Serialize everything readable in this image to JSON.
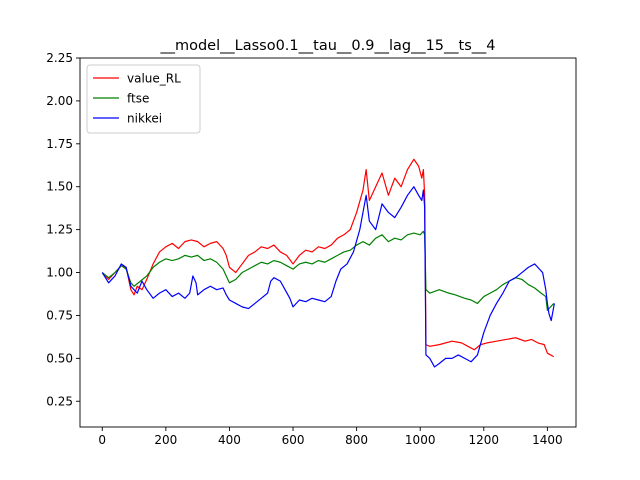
{
  "chart_data": {
    "type": "line",
    "title": "__model__Lasso0.1__tau__0.9__lag__15__ts__4",
    "xlabel": "",
    "ylabel": "",
    "xlim": [
      -70,
      1490
    ],
    "ylim": [
      0.1,
      2.25
    ],
    "xticks": [
      0,
      200,
      400,
      600,
      800,
      1000,
      1200,
      1400
    ],
    "yticks": [
      0.25,
      0.5,
      0.75,
      1.0,
      1.25,
      1.5,
      1.75,
      2.0,
      2.25
    ],
    "ytick_labels": [
      "0.25",
      "0.50",
      "0.75",
      "1.00",
      "1.25",
      "1.50",
      "1.75",
      "2.00",
      "2.25"
    ],
    "grid": false,
    "legend_position": "upper-left",
    "series": [
      {
        "name": "value_RL",
        "color": "#ff0000",
        "points": [
          [
            0,
            1.0
          ],
          [
            20,
            0.96
          ],
          [
            40,
            1.0
          ],
          [
            60,
            1.04
          ],
          [
            75,
            1.03
          ],
          [
            90,
            0.9
          ],
          [
            100,
            0.87
          ],
          [
            110,
            0.92
          ],
          [
            125,
            0.9
          ],
          [
            140,
            0.96
          ],
          [
            160,
            1.05
          ],
          [
            180,
            1.12
          ],
          [
            200,
            1.15
          ],
          [
            220,
            1.17
          ],
          [
            240,
            1.14
          ],
          [
            260,
            1.18
          ],
          [
            280,
            1.19
          ],
          [
            300,
            1.18
          ],
          [
            320,
            1.15
          ],
          [
            340,
            1.17
          ],
          [
            360,
            1.18
          ],
          [
            380,
            1.14
          ],
          [
            390,
            1.1
          ],
          [
            400,
            1.03
          ],
          [
            420,
            1.0
          ],
          [
            440,
            1.05
          ],
          [
            460,
            1.1
          ],
          [
            480,
            1.12
          ],
          [
            500,
            1.15
          ],
          [
            520,
            1.14
          ],
          [
            540,
            1.16
          ],
          [
            560,
            1.12
          ],
          [
            580,
            1.1
          ],
          [
            600,
            1.05
          ],
          [
            620,
            1.1
          ],
          [
            640,
            1.13
          ],
          [
            660,
            1.12
          ],
          [
            680,
            1.15
          ],
          [
            700,
            1.14
          ],
          [
            720,
            1.16
          ],
          [
            740,
            1.2
          ],
          [
            760,
            1.22
          ],
          [
            780,
            1.25
          ],
          [
            800,
            1.35
          ],
          [
            820,
            1.48
          ],
          [
            830,
            1.6
          ],
          [
            840,
            1.42
          ],
          [
            860,
            1.5
          ],
          [
            880,
            1.58
          ],
          [
            900,
            1.45
          ],
          [
            920,
            1.55
          ],
          [
            940,
            1.5
          ],
          [
            960,
            1.6
          ],
          [
            980,
            1.66
          ],
          [
            995,
            1.62
          ],
          [
            1005,
            1.55
          ],
          [
            1010,
            1.6
          ],
          [
            1014,
            1.45
          ],
          [
            1018,
            0.58
          ],
          [
            1030,
            0.57
          ],
          [
            1060,
            0.58
          ],
          [
            1100,
            0.6
          ],
          [
            1130,
            0.59
          ],
          [
            1150,
            0.57
          ],
          [
            1170,
            0.55
          ],
          [
            1190,
            0.58
          ],
          [
            1210,
            0.59
          ],
          [
            1240,
            0.6
          ],
          [
            1270,
            0.61
          ],
          [
            1300,
            0.62
          ],
          [
            1330,
            0.6
          ],
          [
            1350,
            0.61
          ],
          [
            1370,
            0.59
          ],
          [
            1390,
            0.58
          ],
          [
            1400,
            0.53
          ],
          [
            1410,
            0.52
          ],
          [
            1420,
            0.51
          ]
        ]
      },
      {
        "name": "ftse",
        "color": "#008000",
        "points": [
          [
            0,
            1.0
          ],
          [
            20,
            0.97
          ],
          [
            40,
            1.0
          ],
          [
            60,
            1.04
          ],
          [
            75,
            1.02
          ],
          [
            90,
            0.94
          ],
          [
            100,
            0.92
          ],
          [
            120,
            0.95
          ],
          [
            140,
            0.98
          ],
          [
            160,
            1.03
          ],
          [
            180,
            1.06
          ],
          [
            200,
            1.08
          ],
          [
            220,
            1.07
          ],
          [
            240,
            1.08
          ],
          [
            260,
            1.1
          ],
          [
            280,
            1.09
          ],
          [
            300,
            1.1
          ],
          [
            320,
            1.07
          ],
          [
            340,
            1.08
          ],
          [
            360,
            1.06
          ],
          [
            380,
            1.02
          ],
          [
            390,
            0.98
          ],
          [
            400,
            0.94
          ],
          [
            420,
            0.96
          ],
          [
            440,
            1.0
          ],
          [
            460,
            1.02
          ],
          [
            480,
            1.04
          ],
          [
            500,
            1.06
          ],
          [
            520,
            1.05
          ],
          [
            540,
            1.07
          ],
          [
            560,
            1.06
          ],
          [
            580,
            1.04
          ],
          [
            600,
            1.02
          ],
          [
            620,
            1.05
          ],
          [
            640,
            1.06
          ],
          [
            660,
            1.05
          ],
          [
            680,
            1.07
          ],
          [
            700,
            1.06
          ],
          [
            720,
            1.08
          ],
          [
            740,
            1.1
          ],
          [
            760,
            1.12
          ],
          [
            780,
            1.13
          ],
          [
            800,
            1.16
          ],
          [
            820,
            1.18
          ],
          [
            840,
            1.16
          ],
          [
            860,
            1.2
          ],
          [
            880,
            1.22
          ],
          [
            900,
            1.18
          ],
          [
            920,
            1.2
          ],
          [
            940,
            1.19
          ],
          [
            960,
            1.22
          ],
          [
            980,
            1.23
          ],
          [
            1000,
            1.22
          ],
          [
            1010,
            1.24
          ],
          [
            1014,
            1.22
          ],
          [
            1018,
            0.9
          ],
          [
            1030,
            0.88
          ],
          [
            1060,
            0.9
          ],
          [
            1090,
            0.88
          ],
          [
            1110,
            0.87
          ],
          [
            1140,
            0.85
          ],
          [
            1160,
            0.84
          ],
          [
            1180,
            0.82
          ],
          [
            1200,
            0.86
          ],
          [
            1220,
            0.88
          ],
          [
            1240,
            0.9
          ],
          [
            1260,
            0.93
          ],
          [
            1280,
            0.95
          ],
          [
            1300,
            0.97
          ],
          [
            1320,
            0.96
          ],
          [
            1340,
            0.93
          ],
          [
            1360,
            0.91
          ],
          [
            1380,
            0.88
          ],
          [
            1395,
            0.86
          ],
          [
            1400,
            0.78
          ],
          [
            1410,
            0.8
          ],
          [
            1420,
            0.82
          ]
        ]
      },
      {
        "name": "nikkei",
        "color": "#0000ff",
        "points": [
          [
            0,
            1.0
          ],
          [
            20,
            0.94
          ],
          [
            40,
            0.98
          ],
          [
            60,
            1.05
          ],
          [
            75,
            1.03
          ],
          [
            90,
            0.92
          ],
          [
            100,
            0.9
          ],
          [
            110,
            0.88
          ],
          [
            125,
            0.95
          ],
          [
            140,
            0.9
          ],
          [
            160,
            0.85
          ],
          [
            180,
            0.88
          ],
          [
            200,
            0.9
          ],
          [
            220,
            0.86
          ],
          [
            240,
            0.88
          ],
          [
            260,
            0.85
          ],
          [
            275,
            0.88
          ],
          [
            285,
            0.98
          ],
          [
            295,
            0.94
          ],
          [
            300,
            0.87
          ],
          [
            320,
            0.9
          ],
          [
            340,
            0.92
          ],
          [
            360,
            0.9
          ],
          [
            380,
            0.91
          ],
          [
            390,
            0.87
          ],
          [
            400,
            0.84
          ],
          [
            420,
            0.82
          ],
          [
            440,
            0.8
          ],
          [
            460,
            0.79
          ],
          [
            480,
            0.82
          ],
          [
            500,
            0.85
          ],
          [
            520,
            0.88
          ],
          [
            530,
            0.95
          ],
          [
            540,
            0.97
          ],
          [
            560,
            0.95
          ],
          [
            575,
            0.9
          ],
          [
            590,
            0.85
          ],
          [
            600,
            0.8
          ],
          [
            620,
            0.84
          ],
          [
            640,
            0.83
          ],
          [
            660,
            0.85
          ],
          [
            680,
            0.84
          ],
          [
            700,
            0.83
          ],
          [
            720,
            0.86
          ],
          [
            735,
            0.95
          ],
          [
            750,
            1.02
          ],
          [
            770,
            1.05
          ],
          [
            790,
            1.12
          ],
          [
            810,
            1.25
          ],
          [
            830,
            1.45
          ],
          [
            840,
            1.3
          ],
          [
            860,
            1.25
          ],
          [
            880,
            1.4
          ],
          [
            900,
            1.35
          ],
          [
            920,
            1.32
          ],
          [
            940,
            1.38
          ],
          [
            960,
            1.45
          ],
          [
            980,
            1.5
          ],
          [
            995,
            1.45
          ],
          [
            1005,
            1.42
          ],
          [
            1010,
            1.48
          ],
          [
            1014,
            1.38
          ],
          [
            1018,
            0.52
          ],
          [
            1030,
            0.5
          ],
          [
            1045,
            0.45
          ],
          [
            1060,
            0.47
          ],
          [
            1080,
            0.5
          ],
          [
            1100,
            0.5
          ],
          [
            1120,
            0.52
          ],
          [
            1140,
            0.5
          ],
          [
            1160,
            0.48
          ],
          [
            1180,
            0.52
          ],
          [
            1200,
            0.65
          ],
          [
            1220,
            0.75
          ],
          [
            1240,
            0.82
          ],
          [
            1260,
            0.88
          ],
          [
            1280,
            0.95
          ],
          [
            1300,
            0.97
          ],
          [
            1320,
            1.0
          ],
          [
            1340,
            1.03
          ],
          [
            1360,
            1.05
          ],
          [
            1375,
            1.02
          ],
          [
            1385,
            1.0
          ],
          [
            1390,
            0.95
          ],
          [
            1395,
            0.9
          ],
          [
            1400,
            0.82
          ],
          [
            1405,
            0.76
          ],
          [
            1412,
            0.72
          ],
          [
            1418,
            0.78
          ],
          [
            1422,
            0.82
          ]
        ]
      }
    ]
  }
}
